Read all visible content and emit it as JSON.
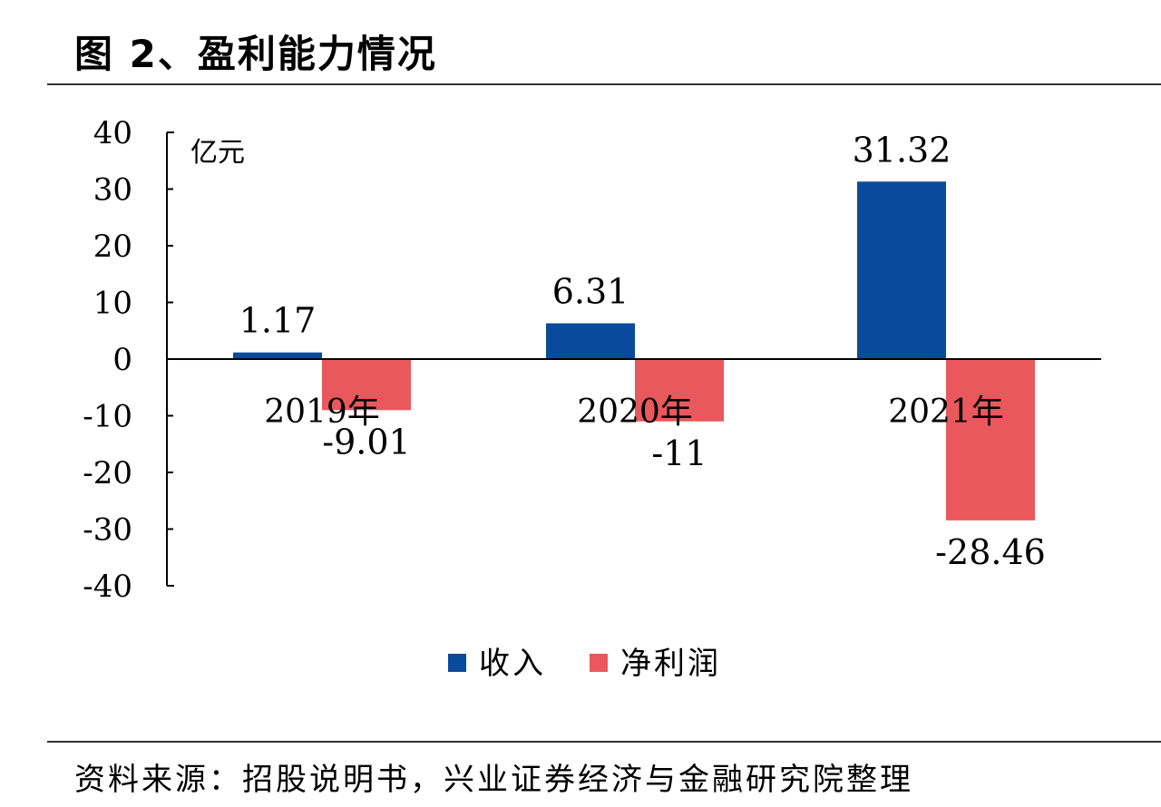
{
  "title": "图 2、盈利能力情况",
  "source": "资料来源：招股说明书，兴业证券经济与金融研究院整理",
  "chart_data": {
    "type": "bar",
    "unit_label": "亿元",
    "categories": [
      "2019年",
      "2020年",
      "2021年"
    ],
    "series": [
      {
        "name": "收入",
        "color": "#0a4a9c",
        "values": [
          1.17,
          6.31,
          31.32
        ],
        "labels": [
          "1.17",
          "6.31",
          "31.32"
        ]
      },
      {
        "name": "净利润",
        "color": "#e9585c",
        "values": [
          -9.01,
          -11,
          -28.46
        ],
        "labels": [
          "-9.01",
          "-11",
          "-28.46"
        ]
      }
    ],
    "ylim": [
      -40,
      40
    ],
    "yticks": [
      40,
      30,
      20,
      10,
      0,
      -10,
      -20,
      -30,
      -40
    ],
    "legend_position": "bottom-center",
    "grid": false
  }
}
